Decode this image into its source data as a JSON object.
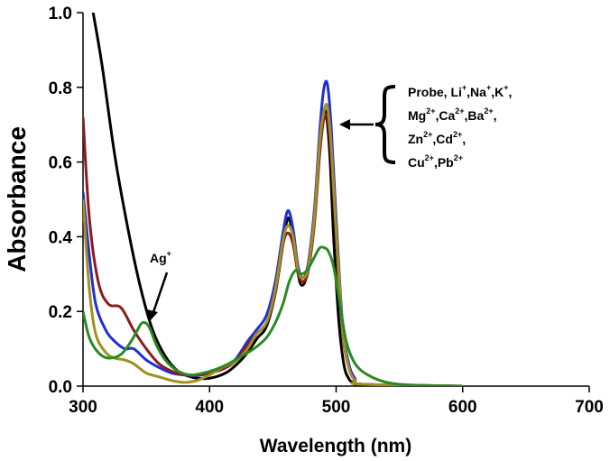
{
  "chart_data": {
    "type": "line",
    "title": "",
    "xlabel": "Wavelength (nm)",
    "ylabel": "Absorbance",
    "xlim": [
      300,
      700
    ],
    "ylim": [
      0,
      1.0
    ],
    "xticks": [
      300,
      400,
      500,
      600,
      700
    ],
    "xtick_labels": [
      "300",
      "400",
      "500",
      "600",
      "700"
    ],
    "yticks": [
      0,
      0.2,
      0.4,
      0.6,
      0.8,
      1.0
    ],
    "ytick_labels": [
      "0.0",
      "0.2",
      "0.4",
      "0.6",
      "0.8",
      "1.0"
    ],
    "grid": false,
    "legend": "none",
    "annotations": {
      "ag_label": "Ag",
      "ag_sup": "+",
      "group_lines": [
        [
          {
            "t": "Probe, Li"
          },
          {
            "t": "+",
            "sup": true
          },
          {
            "t": ",Na"
          },
          {
            "t": "+",
            "sup": true
          },
          {
            "t": ",K"
          },
          {
            "t": "+",
            "sup": true
          },
          {
            "t": ","
          }
        ],
        [
          {
            "t": "Mg"
          },
          {
            "t": "2+",
            "sup": true
          },
          {
            "t": ",Ca"
          },
          {
            "t": "2+",
            "sup": true
          },
          {
            "t": ",Ba"
          },
          {
            "t": "2+",
            "sup": true
          },
          {
            "t": ","
          }
        ],
        [
          {
            "t": "Zn"
          },
          {
            "t": "2+",
            "sup": true
          },
          {
            "t": ",Cd"
          },
          {
            "t": "2+",
            "sup": true
          },
          {
            "t": ","
          }
        ],
        [
          {
            "t": "Cu"
          },
          {
            "t": "2+",
            "sup": true
          },
          {
            "t": ",Pb"
          },
          {
            "t": "2+",
            "sup": true
          }
        ]
      ]
    },
    "series": [
      {
        "name": "black",
        "color": "#000000",
        "x": [
          308,
          315,
          325,
          335,
          345,
          355,
          365,
          375,
          385,
          395,
          405,
          415,
          425,
          432,
          438,
          445,
          452,
          458,
          462,
          466,
          470,
          473,
          477,
          482,
          486,
          489,
          492,
          495,
          498,
          502,
          506,
          510,
          515,
          520,
          530,
          600
        ],
        "y": [
          1.0,
          0.86,
          0.62,
          0.43,
          0.27,
          0.15,
          0.08,
          0.04,
          0.025,
          0.02,
          0.025,
          0.04,
          0.07,
          0.1,
          0.13,
          0.16,
          0.25,
          0.38,
          0.45,
          0.4,
          0.3,
          0.27,
          0.3,
          0.42,
          0.6,
          0.72,
          0.73,
          0.62,
          0.4,
          0.18,
          0.06,
          0.02,
          0.005,
          0.0,
          0.0,
          0.0
        ]
      },
      {
        "name": "blue",
        "color": "#1f2fd6",
        "x": [
          300,
          305,
          310,
          318,
          325,
          333,
          340,
          350,
          360,
          370,
          380,
          390,
          400,
          410,
          420,
          430,
          437,
          445,
          452,
          458,
          462,
          466,
          470,
          474,
          478,
          483,
          487,
          490,
          493,
          496,
          500,
          505,
          510,
          515,
          520,
          600
        ],
        "y": [
          0.52,
          0.35,
          0.22,
          0.15,
          0.12,
          0.1,
          0.1,
          0.07,
          0.05,
          0.035,
          0.03,
          0.028,
          0.035,
          0.05,
          0.07,
          0.12,
          0.15,
          0.19,
          0.28,
          0.41,
          0.47,
          0.42,
          0.32,
          0.29,
          0.33,
          0.48,
          0.68,
          0.79,
          0.81,
          0.7,
          0.45,
          0.17,
          0.06,
          0.02,
          0.005,
          0.0
        ]
      },
      {
        "name": "dark-red",
        "color": "#8a1c1c",
        "x": [
          300,
          305,
          312,
          320,
          330,
          340,
          350,
          360,
          370,
          380,
          390,
          400,
          410,
          420,
          430,
          437,
          445,
          452,
          458,
          462,
          466,
          470,
          474,
          478,
          483,
          487,
          490,
          493,
          496,
          500,
          505,
          510,
          515,
          520,
          600
        ],
        "y": [
          0.72,
          0.45,
          0.28,
          0.22,
          0.21,
          0.15,
          0.1,
          0.06,
          0.04,
          0.03,
          0.03,
          0.035,
          0.045,
          0.065,
          0.11,
          0.14,
          0.17,
          0.25,
          0.38,
          0.41,
          0.38,
          0.3,
          0.28,
          0.31,
          0.44,
          0.62,
          0.71,
          0.72,
          0.62,
          0.4,
          0.15,
          0.05,
          0.015,
          0.005,
          0.0
        ]
      },
      {
        "name": "olive",
        "color": "#a09020",
        "x": [
          300,
          305,
          310,
          318,
          325,
          333,
          340,
          350,
          360,
          370,
          380,
          390,
          400,
          410,
          420,
          430,
          437,
          445,
          452,
          458,
          462,
          466,
          470,
          474,
          478,
          483,
          487,
          490,
          493,
          496,
          500,
          505,
          510,
          515,
          520,
          600
        ],
        "y": [
          0.5,
          0.26,
          0.14,
          0.09,
          0.075,
          0.07,
          0.06,
          0.035,
          0.025,
          0.015,
          0.01,
          0.015,
          0.03,
          0.05,
          0.065,
          0.1,
          0.14,
          0.17,
          0.26,
          0.39,
          0.43,
          0.4,
          0.31,
          0.29,
          0.32,
          0.46,
          0.65,
          0.73,
          0.75,
          0.65,
          0.42,
          0.16,
          0.05,
          0.015,
          0.005,
          0.0
        ]
      },
      {
        "name": "green (Ag+)",
        "color": "#2a8a22",
        "x": [
          300,
          305,
          312,
          320,
          330,
          338,
          343,
          347,
          352,
          358,
          365,
          375,
          385,
          395,
          405,
          415,
          425,
          435,
          445,
          452,
          458,
          463,
          468,
          472,
          477,
          482,
          487,
          491,
          494,
          498,
          503,
          508,
          515,
          525,
          540,
          560,
          600
        ],
        "y": [
          0.2,
          0.13,
          0.09,
          0.075,
          0.085,
          0.12,
          0.15,
          0.17,
          0.16,
          0.11,
          0.07,
          0.04,
          0.03,
          0.035,
          0.045,
          0.06,
          0.08,
          0.1,
          0.13,
          0.17,
          0.22,
          0.28,
          0.31,
          0.3,
          0.31,
          0.34,
          0.37,
          0.37,
          0.36,
          0.32,
          0.22,
          0.12,
          0.06,
          0.03,
          0.01,
          0.003,
          0.0
        ]
      }
    ]
  }
}
